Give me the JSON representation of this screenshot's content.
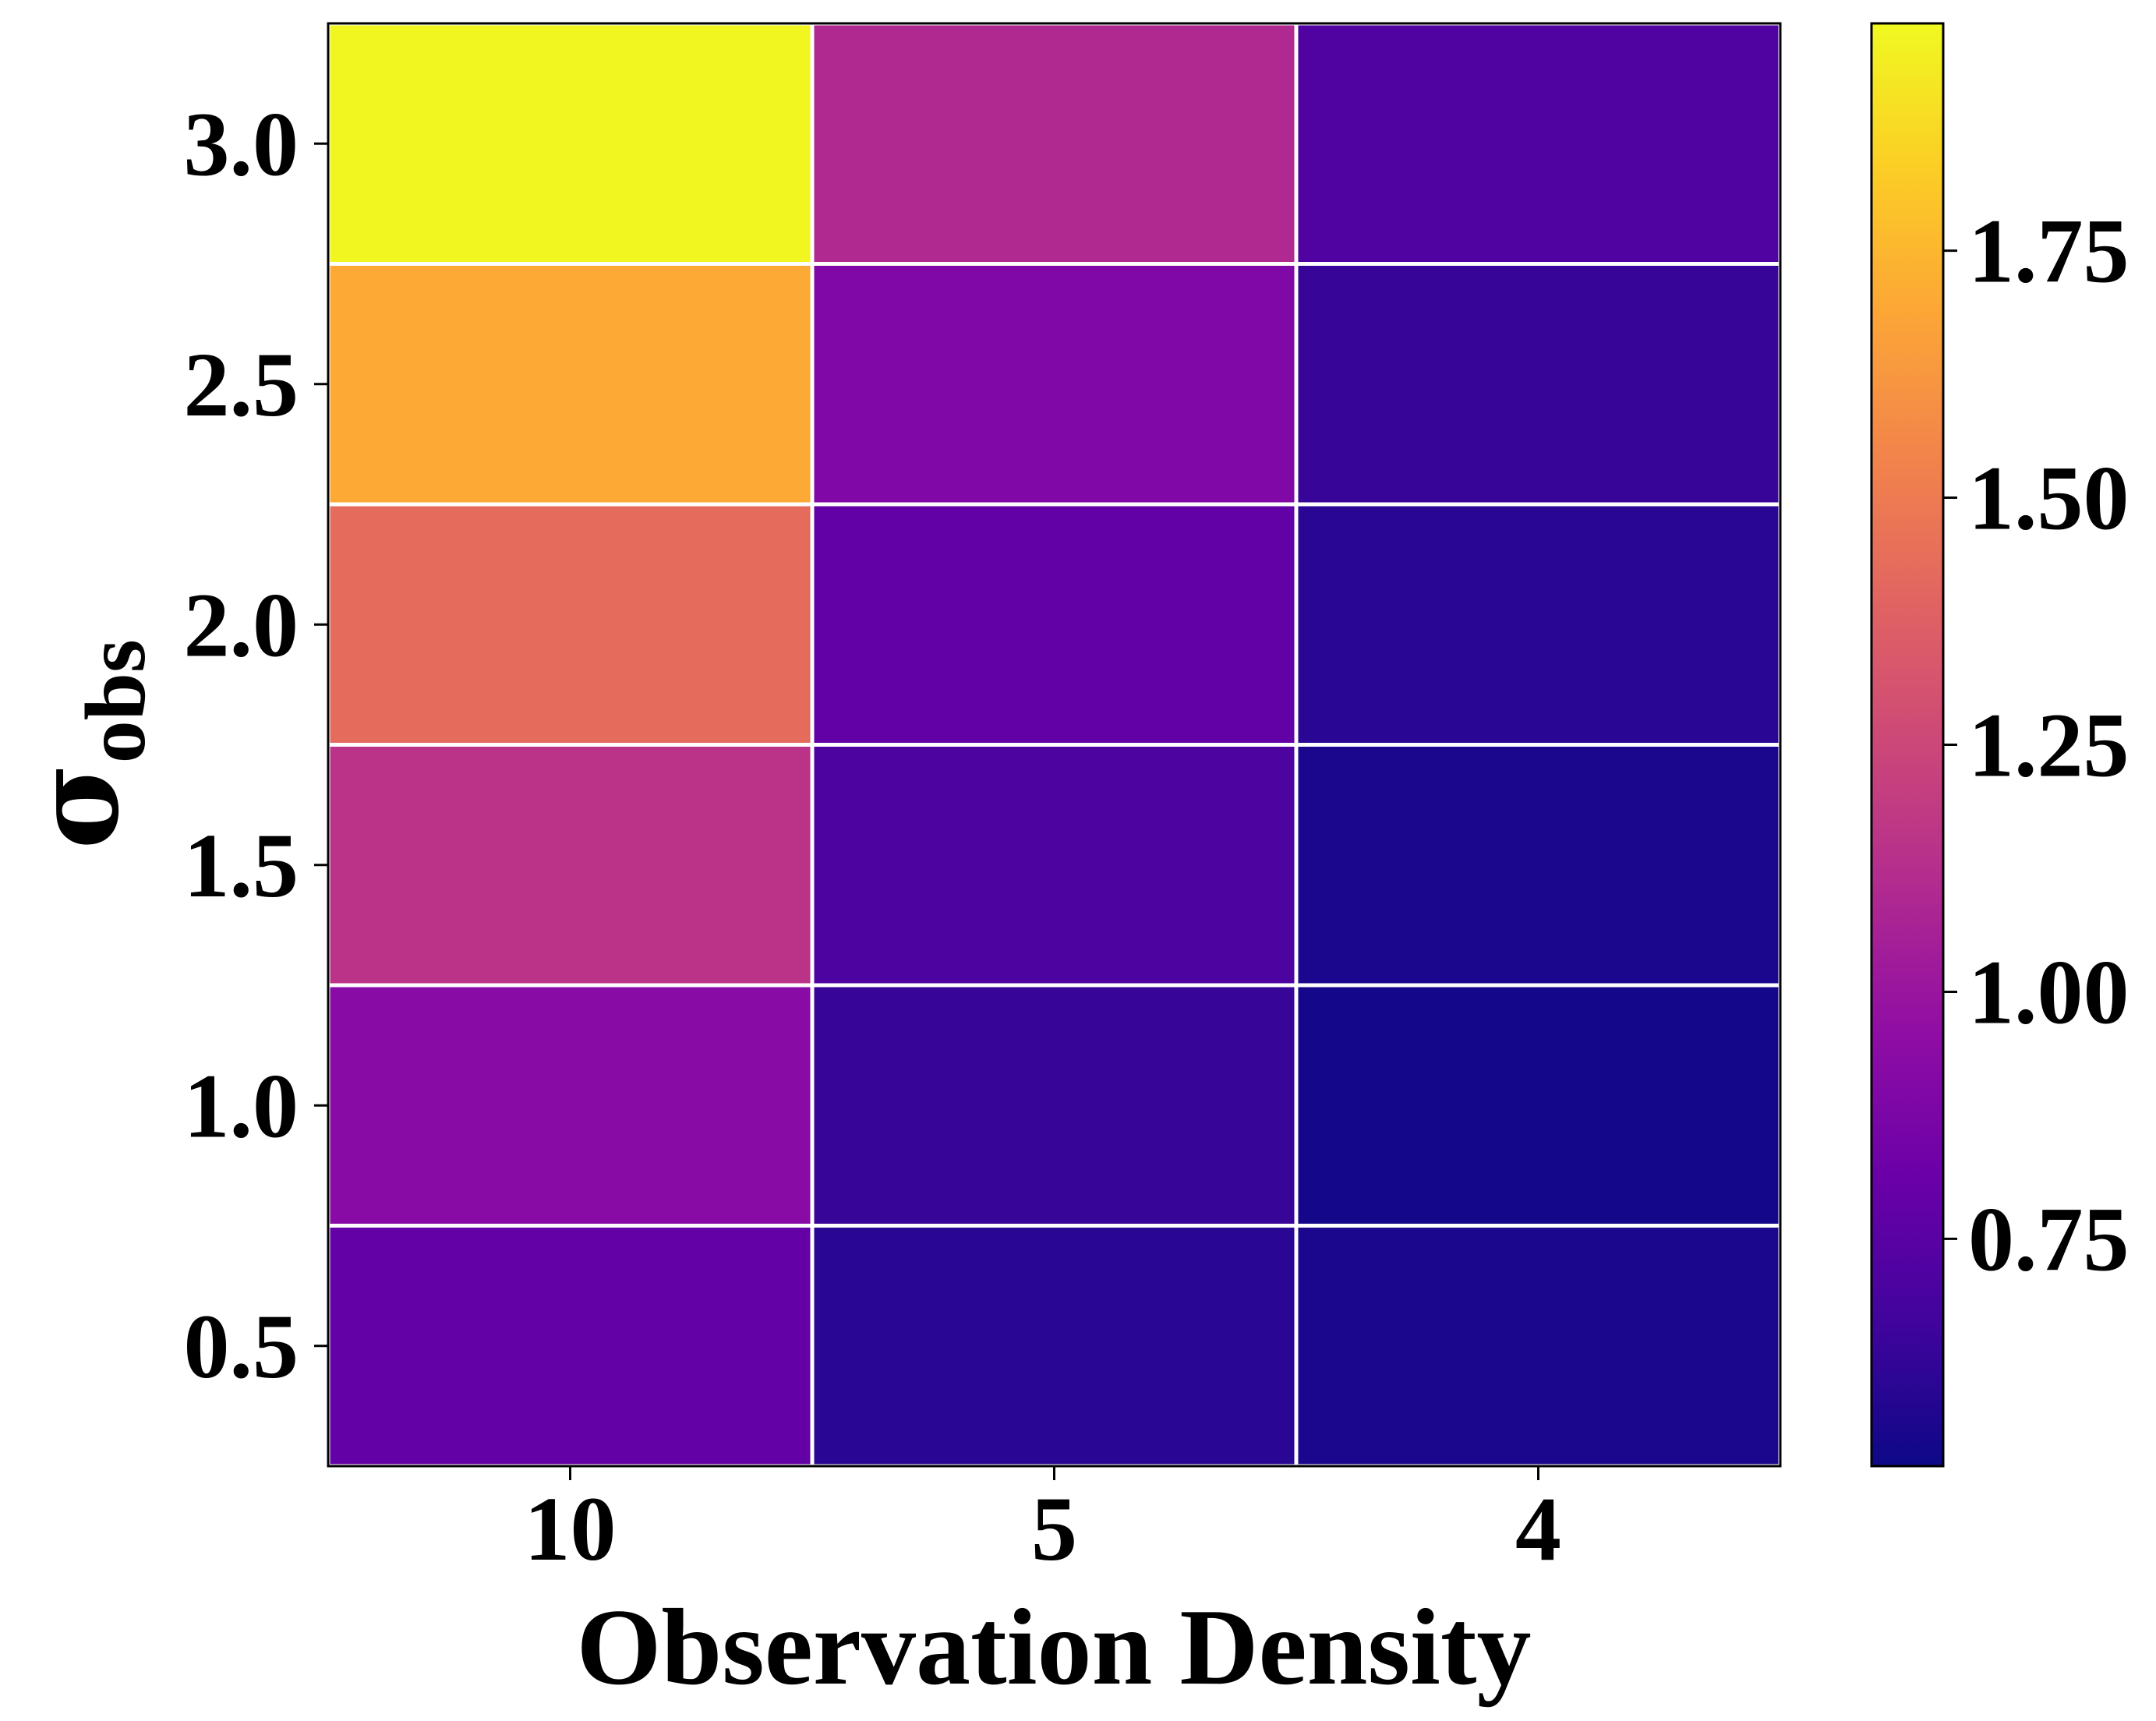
{
  "chart_data": {
    "type": "heatmap",
    "xlabel": "Observation Density",
    "ylabel": {
      "main": "σ",
      "sub": "obs"
    },
    "x_categories": [
      "10",
      "5",
      "4"
    ],
    "y_categories": [
      "3.0",
      "2.5",
      "2.0",
      "1.5",
      "1.0",
      "0.5"
    ],
    "values": [
      [
        1.97,
        1.1,
        0.72
      ],
      [
        1.7,
        0.9,
        0.64
      ],
      [
        1.43,
        0.78,
        0.6
      ],
      [
        1.15,
        0.71,
        0.56
      ],
      [
        0.93,
        0.64,
        0.54
      ],
      [
        0.79,
        0.6,
        0.56
      ]
    ],
    "colormap": "plasma",
    "vmin": 0.52,
    "vmax": 1.98,
    "colorbar_ticks": [
      0.75,
      1.0,
      1.25,
      1.5,
      1.75
    ],
    "colorbar_tick_labels": [
      "0.75",
      "1.00",
      "1.25",
      "1.50",
      "1.75"
    ],
    "grid_line_color": "#ffffff"
  }
}
